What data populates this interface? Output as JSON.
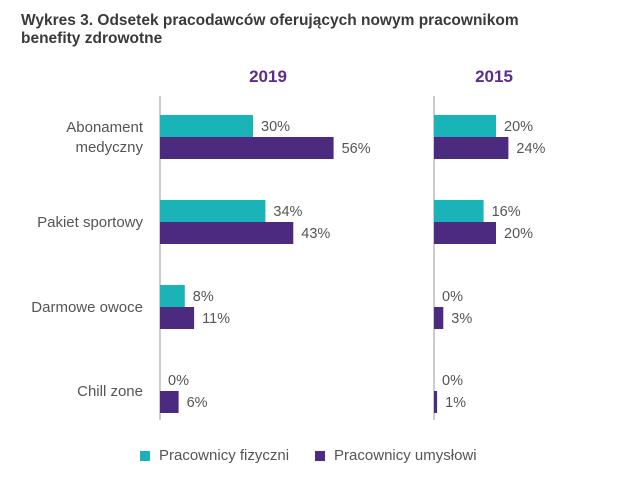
{
  "title": {
    "line1": "Wykres 3. Odsetek pracodawców oferujących nowym pracownikom",
    "line2": "benefity zdrowotne"
  },
  "colors": {
    "fizyczni": "#1ab3b8",
    "umyslowi": "#4b2a80",
    "year": "#5a2d8c",
    "axis": "#999999"
  },
  "legend": [
    {
      "name": "Pracownicy fizyczni",
      "color_key": "fizyczni"
    },
    {
      "name": "Pracownicy umysłowi",
      "color_key": "umyslowi"
    }
  ],
  "chart_data": {
    "type": "bar",
    "orientation": "horizontal",
    "title": "Wykres 3. Odsetek pracodawców oferujących nowym pracownikom benefity zdrowotne",
    "categories": [
      [
        "Abonament",
        "medyczny"
      ],
      [
        "Pakiet sportowy"
      ],
      [
        "Darmowe owoce"
      ],
      [
        "Chill zone"
      ]
    ],
    "panels": [
      {
        "year": "2019",
        "series": [
          {
            "name": "Pracownicy fizyczni",
            "values": [
              30,
              34,
              8,
              0
            ],
            "labels": [
              "30%",
              "34%",
              "8%",
              "0%"
            ]
          },
          {
            "name": "Pracownicy umysłowi",
            "values": [
              56,
              43,
              11,
              6
            ],
            "labels": [
              "56%",
              "43%",
              "11%",
              "6%"
            ]
          }
        ]
      },
      {
        "year": "2015",
        "series": [
          {
            "name": "Pracownicy fizyczni",
            "values": [
              20,
              16,
              0,
              0
            ],
            "labels": [
              "20%",
              "16%",
              "0%",
              "0%"
            ]
          },
          {
            "name": "Pracownicy umysłowi",
            "values": [
              24,
              20,
              3,
              1
            ],
            "labels": [
              "24%",
              "20%",
              "3%",
              "1%"
            ]
          }
        ]
      }
    ],
    "xlabel": "",
    "ylabel": "",
    "xlim": [
      0,
      100
    ],
    "legend_position": "bottom"
  }
}
